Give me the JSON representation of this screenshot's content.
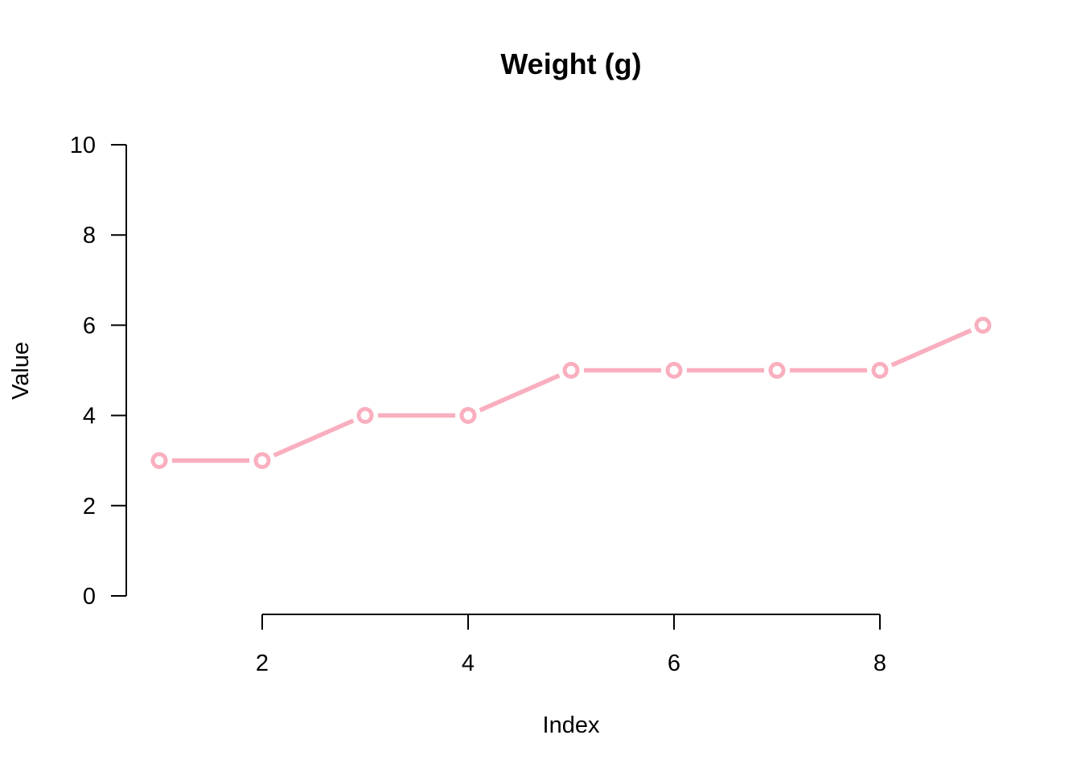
{
  "chart_data": {
    "type": "line",
    "title": "Weight (g)",
    "xlabel": "Index",
    "ylabel": "Value",
    "x": [
      1,
      2,
      3,
      4,
      5,
      6,
      7,
      8,
      9
    ],
    "series": [
      {
        "values": [
          3,
          3,
          4,
          4,
          5,
          5,
          5,
          5,
          6
        ],
        "color": "#F9AFBE"
      }
    ],
    "xticks": [
      2,
      4,
      6,
      8
    ],
    "yticks": [
      0,
      2,
      4,
      6,
      8,
      10
    ],
    "xlim": [
      1,
      9
    ],
    "ylim": [
      0,
      10
    ],
    "grid": false,
    "legend": "none",
    "marker": "open-circle"
  }
}
